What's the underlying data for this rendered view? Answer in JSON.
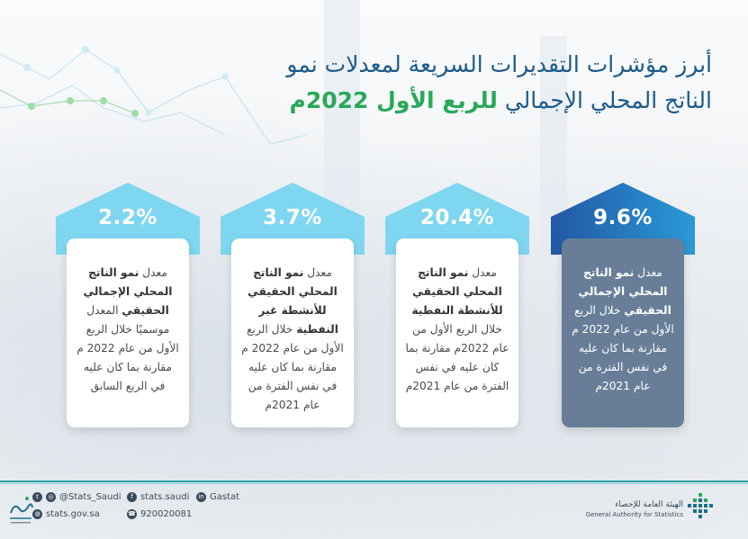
{
  "title": {
    "line1": "أبرز مؤشرات التقديرات السريعة لمعدلات نمو",
    "line2_prefix": "الناتج المحلي الإجمالي ",
    "line2_highlight": "للربع الأول 2022م"
  },
  "cards": [
    {
      "value": "9.6%",
      "text_pre": "معدل ",
      "text_bold": "نمو الناتج المحلي الإجمالي الحقيقي",
      "text_post": " خلال الربع الأول من عام 2022 م مقارنة بما كان عليه في نفس الفترة من عام 2021م"
    },
    {
      "value": "20.4%",
      "text_pre": "معدل ",
      "text_bold": "نمو الناتج المحلي الحقيقي للأنشطة النفطية",
      "text_post": " خلال الربع الأول من عام 2022م مقارنة بما كان عليه في نفس الفترة من عام 2021م"
    },
    {
      "value": "3.7%",
      "text_pre": "معدل ",
      "text_bold": "نمو الناتج المحلي الحقيقي للأنشطة غير النفطية",
      "text_post": " خلال الربع الأول من عام 2022 م مقارنة بما كان عليه في نفس الفترة من عام 2021م"
    },
    {
      "value": "2.2%",
      "text_pre": "معدل ",
      "text_bold": "نمو الناتج المحلي الإجمالي الحقيقي",
      "text_post": " المعدل موسميًا خلال الربع الأول من عام 2022 م مقارنة بما كان عليه في الربع السابق"
    }
  ],
  "footer": {
    "twitter": "@Stats_Saudi",
    "facebook": "stats.saudi",
    "linkedin": "Gastat",
    "website": "stats.gov.sa",
    "phone": "920020081",
    "org_ar": "الهيئة العامة للإحصاء",
    "org_en": "General Authority for Statistics"
  },
  "colors": {
    "title": "#1c5a8a",
    "highlight": "#2aa85a",
    "arrow_light": "#7fd6f0",
    "arrow_dark": "#1f6bb3",
    "card_dark": "#687e98",
    "accent_line": "#26a0a8"
  },
  "icons": [
    "twitter-icon",
    "instagram-icon",
    "facebook-icon",
    "linkedin-icon",
    "globe-icon",
    "phone-icon"
  ]
}
